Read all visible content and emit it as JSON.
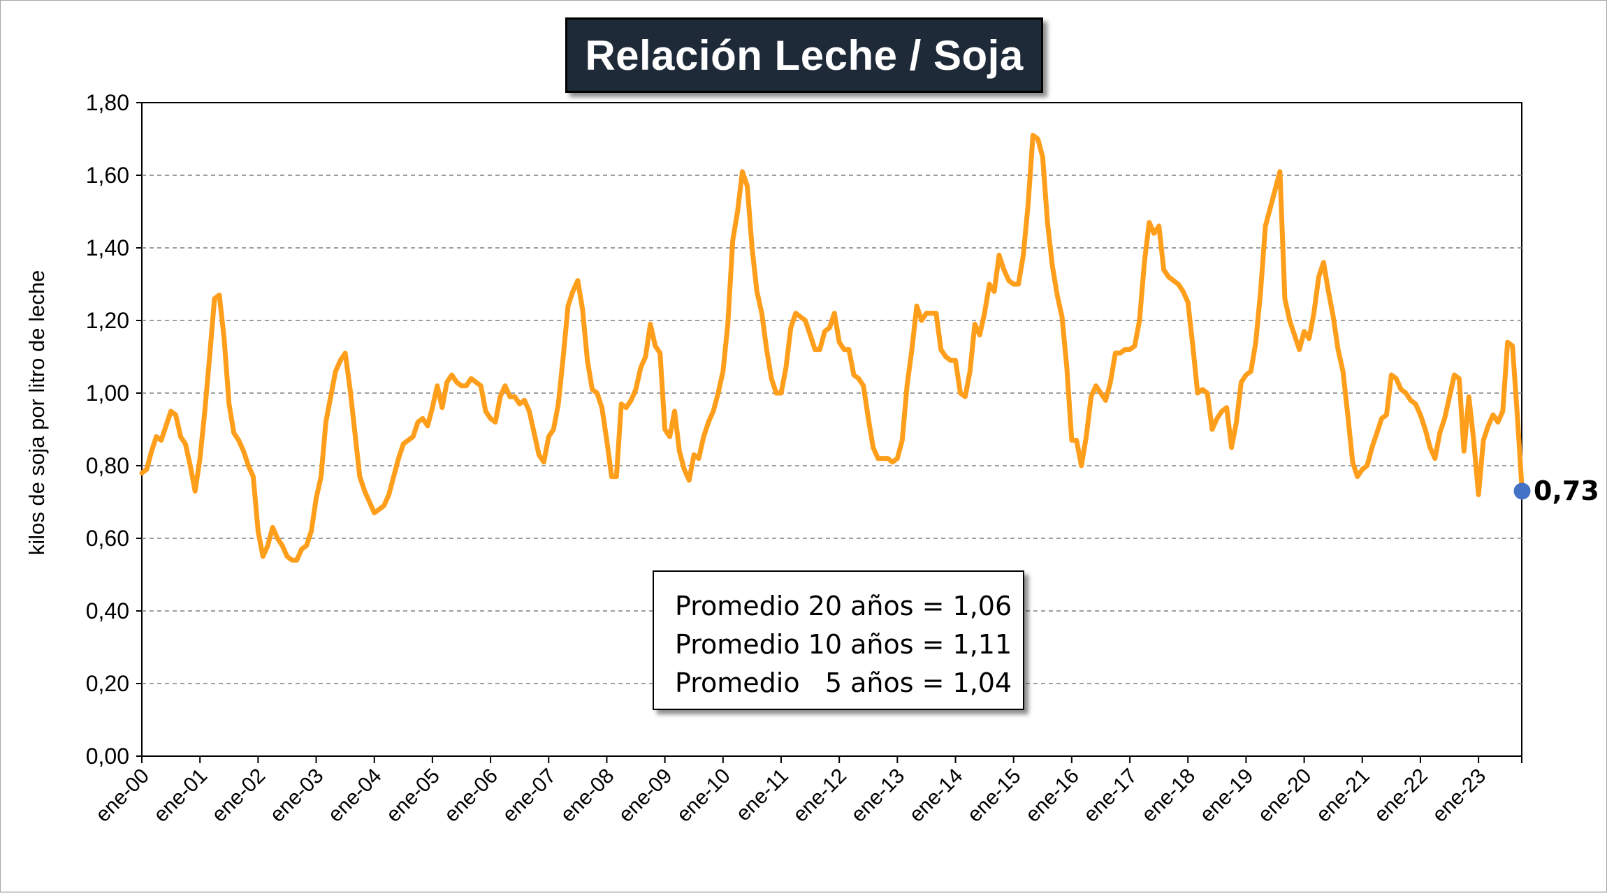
{
  "chart_data": {
    "type": "line",
    "title": "Relación Leche / Soja",
    "ylabel": "kilos de soja por litro de leche",
    "xlabel": "",
    "ylim": [
      0,
      1.8
    ],
    "ytick_labels": [
      "0,00",
      "0,20",
      "0,40",
      "0,60",
      "0,80",
      "1,00",
      "1,20",
      "1,40",
      "1,60",
      "1,80"
    ],
    "xtick_labels": [
      "ene-00",
      "ene-01",
      "ene-02",
      "ene-03",
      "ene-04",
      "ene-05",
      "ene-06",
      "ene-07",
      "ene-08",
      "ene-09",
      "ene-10",
      "ene-11",
      "ene-12",
      "ene-13",
      "ene-14",
      "ene-15",
      "ene-16",
      "ene-17",
      "ene-18",
      "ene-19",
      "ene-20",
      "ene-21",
      "ene-22",
      "ene-23"
    ],
    "grid": true,
    "line_color": "#ff9e1b",
    "marker_color": "#4472c4",
    "last_value_label": "0,73",
    "annotations": [
      "Promedio 20 años = 1,06",
      "Promedio 10 años = 1,11",
      "Promedio   5 años = 1,04"
    ],
    "series": [
      {
        "values": [
          0.78,
          0.79,
          0.84,
          0.88,
          0.87,
          0.91,
          0.95,
          0.94,
          0.88,
          0.86,
          0.8,
          0.73,
          0.82,
          0.95,
          1.1,
          1.26,
          1.27,
          1.15,
          0.97,
          0.89,
          0.87,
          0.84,
          0.8,
          0.77,
          0.62,
          0.55,
          0.58,
          0.63,
          0.6,
          0.58,
          0.55,
          0.54,
          0.54,
          0.57,
          0.58,
          0.62,
          0.71,
          0.77,
          0.92,
          0.99,
          1.06,
          1.09,
          1.11,
          1.01,
          0.89,
          0.77,
          0.73,
          0.7,
          0.67,
          0.68,
          0.69,
          0.72,
          0.77,
          0.82,
          0.86,
          0.87,
          0.88,
          0.92,
          0.93,
          0.91,
          0.96,
          1.02,
          0.96,
          1.03,
          1.05,
          1.03,
          1.02,
          1.02,
          1.04,
          1.03,
          1.02,
          0.95,
          0.93,
          0.92,
          0.99,
          1.02,
          0.99,
          0.99,
          0.97,
          0.98,
          0.95,
          0.89,
          0.83,
          0.81,
          0.88,
          0.9,
          0.97,
          1.1,
          1.24,
          1.28,
          1.31,
          1.23,
          1.09,
          1.01,
          1.0,
          0.96,
          0.87,
          0.77,
          0.77,
          0.97,
          0.96,
          0.98,
          1.01,
          1.07,
          1.1,
          1.19,
          1.13,
          1.11,
          0.9,
          0.88,
          0.95,
          0.84,
          0.79,
          0.76,
          0.83,
          0.82,
          0.88,
          0.92,
          0.95,
          1.0,
          1.06,
          1.19,
          1.42,
          1.5,
          1.61,
          1.57,
          1.4,
          1.28,
          1.22,
          1.12,
          1.04,
          1.0,
          1.0,
          1.07,
          1.18,
          1.22,
          1.21,
          1.2,
          1.16,
          1.12,
          1.12,
          1.17,
          1.18,
          1.22,
          1.14,
          1.12,
          1.12,
          1.05,
          1.04,
          1.02,
          0.93,
          0.85,
          0.82,
          0.82,
          0.82,
          0.81,
          0.82,
          0.87,
          1.02,
          1.12,
          1.24,
          1.2,
          1.22,
          1.22,
          1.22,
          1.12,
          1.1,
          1.09,
          1.09,
          1.0,
          0.99,
          1.06,
          1.19,
          1.16,
          1.22,
          1.3,
          1.28,
          1.38,
          1.34,
          1.31,
          1.3,
          1.3,
          1.38,
          1.52,
          1.71,
          1.7,
          1.65,
          1.47,
          1.35,
          1.27,
          1.21,
          1.07,
          0.87,
          0.87,
          0.8,
          0.88,
          0.99,
          1.02,
          1.0,
          0.98,
          1.03,
          1.11,
          1.11,
          1.12,
          1.12,
          1.13,
          1.2,
          1.36,
          1.47,
          1.44,
          1.46,
          1.34,
          1.32,
          1.31,
          1.3,
          1.28,
          1.25,
          1.13,
          1.0,
          1.01,
          1.0,
          0.9,
          0.93,
          0.95,
          0.96,
          0.85,
          0.92,
          1.03,
          1.05,
          1.06,
          1.14,
          1.28,
          1.46,
          1.51,
          1.56,
          1.61,
          1.26,
          1.2,
          1.16,
          1.12,
          1.17,
          1.15,
          1.22,
          1.32,
          1.36,
          1.28,
          1.21,
          1.12,
          1.06,
          0.94,
          0.81,
          0.77,
          0.79,
          0.8,
          0.85,
          0.89,
          0.93,
          0.94,
          1.05,
          1.04,
          1.01,
          1.0,
          0.98,
          0.97,
          0.94,
          0.9,
          0.85,
          0.82,
          0.89,
          0.93,
          0.99,
          1.05,
          1.04,
          0.84,
          0.99,
          0.87,
          0.72,
          0.87,
          0.91,
          0.94,
          0.92,
          0.95,
          1.14,
          1.13,
          0.94,
          0.73
        ]
      }
    ]
  }
}
